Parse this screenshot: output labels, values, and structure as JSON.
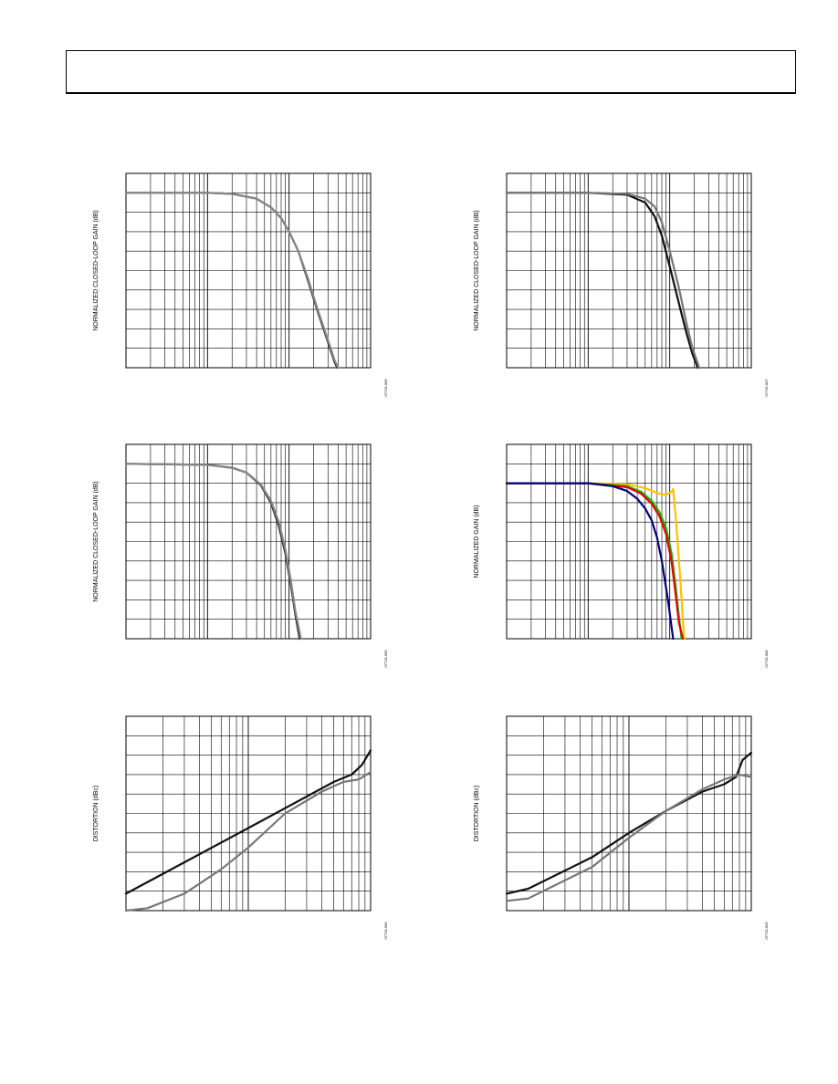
{
  "chart_data": [
    {
      "type": "line",
      "ylabel": "NORMALIZED CLOSED-LOOP GAIN (dB)",
      "figure_id": "07715-006",
      "xscale": "log",
      "xlim": [
        1,
        1000
      ],
      "ylim": [
        -9,
        1
      ],
      "grid": true,
      "series": [
        {
          "color": "#222222",
          "x": [
            1,
            10,
            20,
            40,
            60,
            80,
            100,
            130,
            170,
            220,
            280,
            330,
            360,
            390
          ],
          "y": [
            0,
            0,
            -0.05,
            -0.3,
            -0.75,
            -1.3,
            -2.0,
            -3.0,
            -4.5,
            -6.0,
            -7.3,
            -8.2,
            -8.7,
            -9.0
          ]
        },
        {
          "color": "#888888",
          "x": [
            1,
            10,
            20,
            40,
            60,
            80,
            100,
            130,
            170,
            220,
            280,
            330,
            360,
            400
          ],
          "y": [
            0,
            0,
            -0.05,
            -0.3,
            -0.75,
            -1.3,
            -2.0,
            -3.0,
            -4.4,
            -5.9,
            -7.2,
            -8.1,
            -8.6,
            -9.0
          ]
        }
      ]
    },
    {
      "type": "line",
      "ylabel": "NORMALIZED CLOSED-LOOP GAIN (dB)",
      "figure_id": "07715-007",
      "xscale": "log",
      "xlim": [
        1,
        1000
      ],
      "ylim": [
        -9,
        1
      ],
      "grid": true,
      "series": [
        {
          "color": "#111111",
          "x": [
            1,
            10,
            30,
            50,
            65,
            80,
            100,
            130,
            160,
            190,
            220
          ],
          "y": [
            0,
            0,
            -0.1,
            -0.5,
            -1.2,
            -2.2,
            -3.8,
            -5.7,
            -7.2,
            -8.3,
            -9.0
          ]
        },
        {
          "color": "#777777",
          "x": [
            1,
            10,
            30,
            50,
            65,
            80,
            100,
            130,
            160,
            190,
            230
          ],
          "y": [
            0,
            0,
            -0.05,
            -0.3,
            -0.7,
            -1.5,
            -3.0,
            -4.9,
            -6.7,
            -8.0,
            -9.0
          ]
        }
      ]
    },
    {
      "type": "line",
      "ylabel": "NORMALIZED CLOSED-LOOP GAIN (dB)",
      "figure_id": "07715-009",
      "xscale": "log",
      "xlim": [
        1,
        1000
      ],
      "ylim": [
        -9,
        1
      ],
      "grid": true,
      "series": [
        {
          "color": "#222222",
          "x": [
            1,
            10,
            20,
            30,
            45,
            60,
            75,
            90,
            105,
            120,
            135
          ],
          "y": [
            0,
            -0.05,
            -0.2,
            -0.45,
            -1.1,
            -2.0,
            -3.2,
            -4.6,
            -6.2,
            -7.8,
            -9.0
          ]
        },
        {
          "color": "#888888",
          "x": [
            1,
            10,
            20,
            30,
            45,
            60,
            75,
            90,
            105,
            120,
            140
          ],
          "y": [
            0,
            -0.05,
            -0.2,
            -0.45,
            -1.05,
            -1.9,
            -3.0,
            -4.4,
            -6.0,
            -7.6,
            -9.0
          ]
        }
      ]
    },
    {
      "type": "line",
      "ylabel": "NORMALIZED GAIN (dB)",
      "figure_id": "07715-008",
      "xscale": "log",
      "xlim": [
        1,
        1000
      ],
      "ylim": [
        -7,
        3
      ],
      "grid": true,
      "series": [
        {
          "color": "#ffc000",
          "x": [
            1,
            10,
            30,
            50,
            70,
            90,
            105,
            110,
            120,
            135,
            150
          ],
          "y": [
            1,
            1,
            0.95,
            0.75,
            0.5,
            0.4,
            0.55,
            0.7,
            -1.0,
            -4.0,
            -7.0
          ]
        },
        {
          "color": "#00bb00",
          "x": [
            1,
            10,
            30,
            45,
            60,
            75,
            90,
            105,
            118,
            130,
            140
          ],
          "y": [
            1,
            1,
            0.85,
            0.55,
            0.1,
            -0.5,
            -1.3,
            -2.6,
            -4.3,
            -5.9,
            -7.0
          ]
        },
        {
          "color": "#ee0000",
          "x": [
            1,
            10,
            30,
            45,
            60,
            75,
            90,
            105,
            118,
            130,
            145
          ],
          "y": [
            1,
            1,
            0.8,
            0.45,
            -0.05,
            -0.7,
            -1.6,
            -3.0,
            -4.7,
            -6.2,
            -7.0
          ]
        },
        {
          "color": "#000080",
          "x": [
            1,
            10,
            20,
            30,
            40,
            50,
            60,
            70,
            80,
            95,
            110
          ],
          "y": [
            1,
            1,
            0.85,
            0.6,
            0.2,
            -0.3,
            -0.9,
            -1.8,
            -3.0,
            -5.0,
            -7.0
          ]
        }
      ]
    },
    {
      "type": "line",
      "ylabel": "DISTORTION (dBc)",
      "figure_id": "07715-006",
      "xscale": "log",
      "xlim": [
        1,
        100
      ],
      "ylim": [
        -90,
        -10
      ],
      "grid": true,
      "series": [
        {
          "color": "#111111",
          "x": [
            1,
            10,
            50,
            70,
            85,
            100
          ],
          "y": [
            -83,
            -56,
            -37,
            -34,
            -30,
            -24
          ]
        },
        {
          "color": "#777777",
          "x": [
            1,
            1.5,
            3,
            6,
            10,
            20,
            40,
            60,
            80,
            100
          ],
          "y": [
            -90,
            -89,
            -83,
            -73,
            -64,
            -50,
            -41,
            -37,
            -36,
            -33
          ]
        }
      ]
    },
    {
      "type": "line",
      "ylabel": "DISTORTION (dBc)",
      "figure_id": "07715-009",
      "xscale": "log",
      "xlim": [
        1,
        100
      ],
      "ylim": [
        -90,
        -10
      ],
      "grid": true,
      "series": [
        {
          "color": "#111111",
          "x": [
            1,
            1.5,
            5,
            10,
            20,
            40,
            60,
            75,
            85,
            100
          ],
          "y": [
            -83,
            -81,
            -68,
            -58,
            -49,
            -41,
            -38,
            -35,
            -28,
            -25
          ]
        },
        {
          "color": "#777777",
          "x": [
            1,
            1.5,
            5,
            10,
            20,
            40,
            60,
            80,
            100
          ],
          "y": [
            -86,
            -85,
            -72,
            -60,
            -49,
            -40,
            -36,
            -34,
            -35
          ]
        }
      ]
    }
  ]
}
